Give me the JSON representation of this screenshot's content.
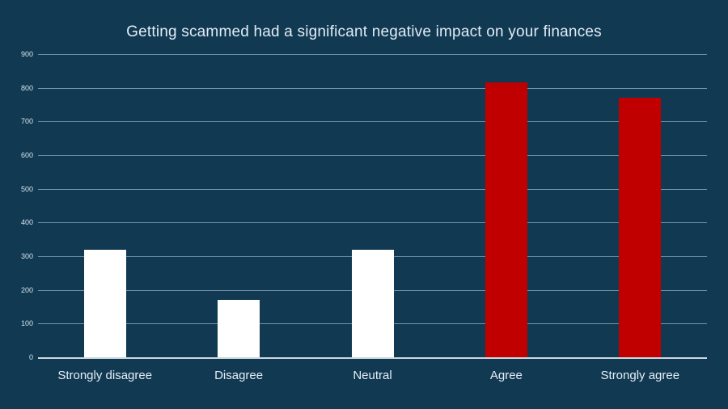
{
  "title": "Getting scammed had a significant negative impact on your finances",
  "colors": {
    "background": "#113a52",
    "gridline": "rgba(150,178,197,0.75)",
    "axis_line": "#ccd8e0",
    "text": "#e2ecf6",
    "bar_white": "#ffffff",
    "bar_red": "#c00000"
  },
  "chart_data": {
    "type": "bar",
    "title": "Getting scammed had a significant negative impact on your finances",
    "categories": [
      "Strongly disagree",
      "Disagree",
      "Neutral",
      "Agree",
      "Strongly agree"
    ],
    "values": [
      320,
      170,
      320,
      815,
      770
    ],
    "bar_colors": [
      "#ffffff",
      "#ffffff",
      "#ffffff",
      "#c00000",
      "#c00000"
    ],
    "xlabel": "",
    "ylabel": "",
    "ylim": [
      0,
      900
    ],
    "yticks": [
      900,
      800,
      700,
      600,
      500,
      400,
      300,
      200,
      100,
      0
    ],
    "grid": true,
    "legend": false
  }
}
